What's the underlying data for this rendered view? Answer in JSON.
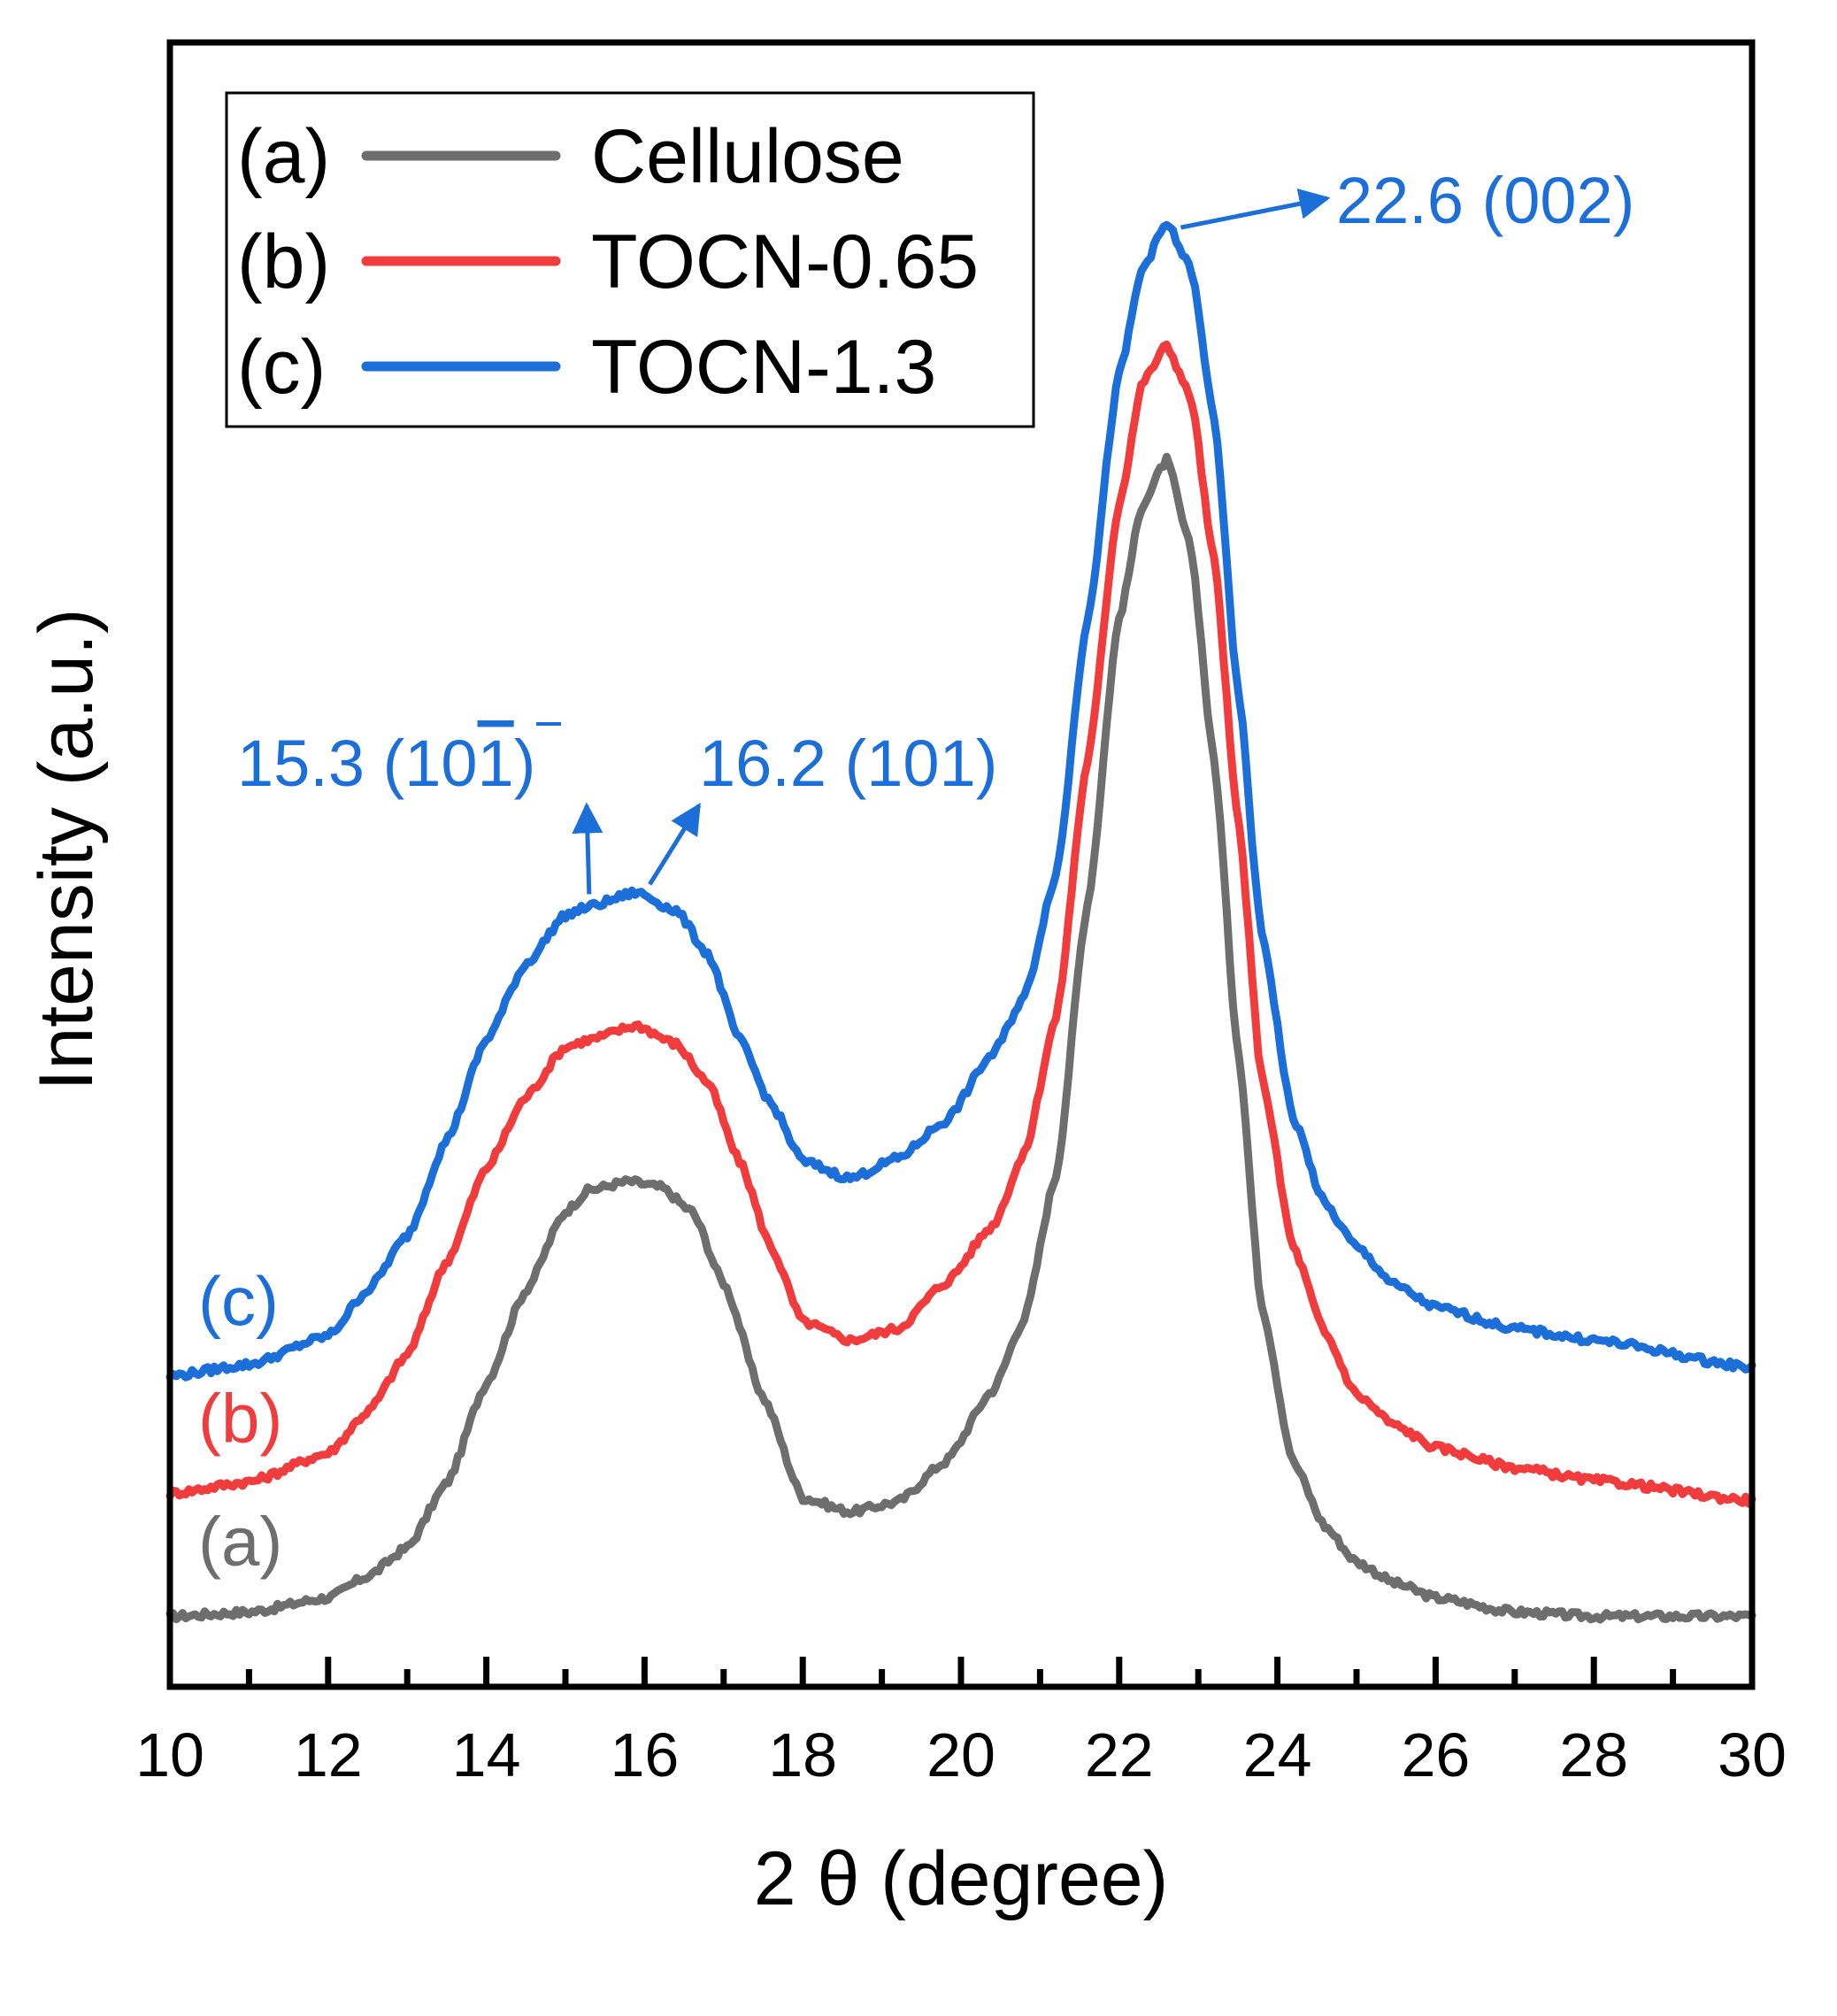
{
  "chart_data": {
    "type": "line",
    "xlabel": "2 θ (degree)",
    "ylabel": "Intensity (a.u.)",
    "xlim": [
      10,
      30
    ],
    "ylim": [
      0,
      100
    ],
    "xticks": [
      "10",
      "12",
      "14",
      "16",
      "18",
      "20",
      "22",
      "24",
      "26",
      "28",
      "30"
    ],
    "grid": false,
    "legend_position": "top-left",
    "legend": [
      {
        "tag": "(a)",
        "name": "Cellulose",
        "color": "#6e6e6e"
      },
      {
        "tag": "(b)",
        "name": "TOCN-0.65",
        "color": "#f03c3c"
      },
      {
        "tag": "(c)",
        "name": "TOCN-1.3",
        "color": "#1c6fd8"
      }
    ],
    "series": [
      {
        "name": "Cellulose",
        "color": "#6e6e6e",
        "label": "(a)",
        "x": [
          10,
          11,
          12,
          12.5,
          13,
          13.5,
          14,
          14.5,
          15,
          15.3,
          15.8,
          16.2,
          16.6,
          17,
          17.5,
          18,
          18.6,
          19.2,
          19.8,
          20.4,
          20.8,
          21.2,
          21.6,
          22,
          22.3,
          22.6,
          22.9,
          23.2,
          23.5,
          23.8,
          24.2,
          24.6,
          25,
          25.5,
          26,
          27,
          28,
          30
        ],
        "y": [
          2.2,
          2.5,
          3.5,
          5,
          7,
          11.5,
          18.5,
          25,
          30.5,
          32,
          32.6,
          32.2,
          30.5,
          25.5,
          17.5,
          10.5,
          9.5,
          10.2,
          13,
          18,
          23,
          33,
          52,
          72,
          80,
          83,
          77,
          62,
          42,
          24,
          13,
          8.5,
          6,
          4.5,
          3.5,
          2.5,
          2.2,
          2.2
        ]
      },
      {
        "name": "TOCN-0.65",
        "color": "#f03c3c",
        "label": "(b)",
        "x": [
          10,
          11,
          12,
          12.5,
          13,
          13.5,
          14,
          14.5,
          15,
          15.3,
          15.9,
          16.4,
          16.8,
          17.2,
          17.6,
          18,
          18.6,
          19.2,
          19.8,
          20.4,
          20.8,
          21.2,
          21.6,
          22,
          22.3,
          22.6,
          22.9,
          23.2,
          23.5,
          23.8,
          24.2,
          24.6,
          25,
          25.5,
          26,
          27,
          28,
          30
        ],
        "y": [
          10.8,
          11.6,
          13.6,
          16.5,
          20.5,
          27,
          33.5,
          38.5,
          42,
          42.5,
          43.5,
          42.2,
          39.5,
          34,
          28,
          22.8,
          21.5,
          22.3,
          25.5,
          29.5,
          34.5,
          44,
          62,
          80,
          88.5,
          91,
          87.5,
          76,
          58,
          40,
          28,
          22,
          17.7,
          15.5,
          14,
          12.6,
          11.7,
          10.3
        ]
      },
      {
        "name": "TOCN-1.3",
        "color": "#1c6fd8",
        "label": "(c)",
        "x": [
          10,
          11,
          12,
          12.5,
          13,
          13.5,
          14,
          14.5,
          15,
          15.3,
          15.9,
          16.4,
          16.8,
          17.2,
          17.6,
          18,
          18.6,
          19.2,
          19.8,
          20.4,
          20.8,
          21.2,
          21.6,
          22,
          22.3,
          22.6,
          22.9,
          23.2,
          23.5,
          23.8,
          24.2,
          24.6,
          25,
          25.5,
          26,
          27,
          28,
          30
        ],
        "y": [
          19,
          19.8,
          21.8,
          25,
          28.8,
          35.5,
          42.5,
          47.8,
          51.2,
          51.8,
          52.8,
          51.5,
          48.5,
          42.5,
          38,
          34,
          32.8,
          34.2,
          36.8,
          41.5,
          45.5,
          54,
          72,
          89,
          96.5,
          99.5,
          96.5,
          86,
          67,
          50,
          37,
          31,
          28,
          25.3,
          23.8,
          22.3,
          21.5,
          19.6
        ]
      }
    ],
    "annotations": [
      {
        "text": "22.6 (002)",
        "x": 22.6,
        "target_series": "TOCN-1.3",
        "color": "#1c6fd8"
      },
      {
        "text": "15.3 (10",
        "text_overbar": "1",
        "text_end": ")",
        "x": 15.3,
        "target_series": "TOCN-1.3",
        "color": "#1c6fd8"
      },
      {
        "text": "16.2 (101)",
        "x": 16.2,
        "target_series": "TOCN-1.3",
        "color": "#1c6fd8"
      }
    ]
  }
}
